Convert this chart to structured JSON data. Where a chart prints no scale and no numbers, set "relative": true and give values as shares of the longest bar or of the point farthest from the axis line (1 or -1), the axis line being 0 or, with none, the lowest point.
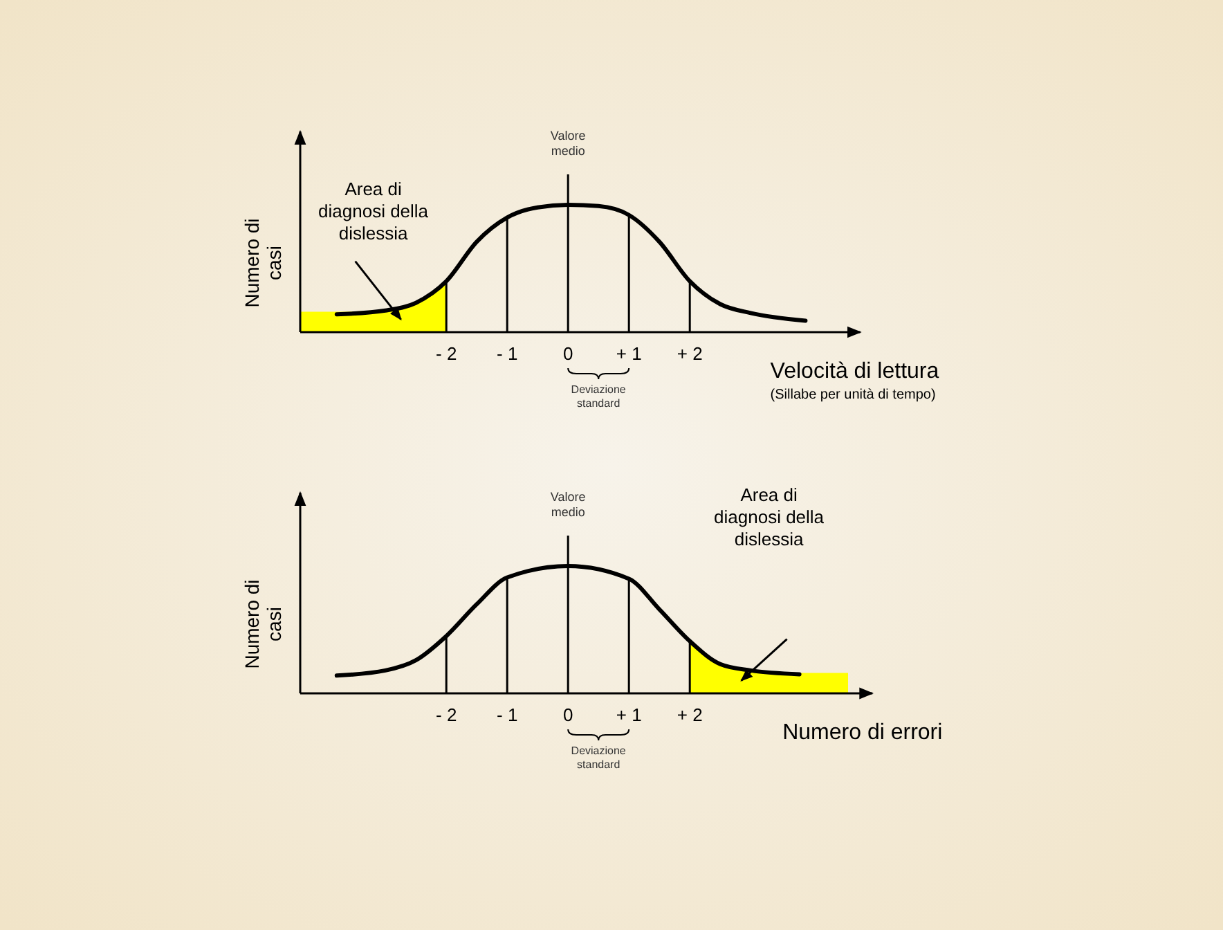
{
  "chart_data": [
    {
      "type": "line",
      "relative": true,
      "xlabel": "Velocità di lettura",
      "ylabel": "Numero di casi",
      "xlim": [
        -4.4,
        4.8
      ],
      "xticks": [
        {
          "value": -2,
          "label": "- 2"
        },
        {
          "value": -1,
          "label": "- 1"
        },
        0,
        {
          "value": 1,
          "label": "+ 1"
        },
        {
          "value": 2,
          "label": "+ 2"
        }
      ],
      "series": [
        {
          "type": "area",
          "color": "#ffff00",
          "x": [
            -4.4,
            -3.8,
            -3,
            -2.5,
            -2
          ],
          "values": [
            0.16,
            0.16,
            0.18,
            0.23,
            0.4
          ]
        },
        {
          "type": "line",
          "color": "#000000",
          "x": [
            -3.8,
            -3,
            -2.5,
            -2,
            -1.5,
            -1,
            -0.5,
            0,
            0.5,
            1,
            1.5,
            2,
            2.5,
            3,
            3.9
          ],
          "values": [
            0.14,
            0.17,
            0.23,
            0.4,
            0.71,
            0.9,
            0.98,
            1,
            0.99,
            0.92,
            0.71,
            0.4,
            0.22,
            0.15,
            0.09
          ]
        }
      ],
      "ref_lines": [
        {
          "axis": "x",
          "value": -2,
          "label": null,
          "color": "#000000"
        },
        {
          "axis": "x",
          "value": -1,
          "label": null,
          "color": "#000000"
        },
        {
          "axis": "x",
          "value": 0,
          "label": "Valore medio",
          "color": "#000000"
        },
        {
          "axis": "x",
          "value": 1,
          "label": null,
          "color": "#000000"
        },
        {
          "axis": "x",
          "value": 2,
          "label": null,
          "color": "#000000"
        }
      ],
      "annotations": [
        "(Sillabe per unità di tempo)",
        "Area di diagnosi della dislessia",
        "Deviazione standard"
      ]
    },
    {
      "type": "line",
      "relative": true,
      "xlabel": "Numero di errori",
      "ylabel": "Numero di casi",
      "xlim": [
        -4.4,
        5
      ],
      "xticks": [
        {
          "value": -2,
          "label": "- 2"
        },
        {
          "value": -1,
          "label": "- 1"
        },
        0,
        {
          "value": 1,
          "label": "+ 1"
        },
        {
          "value": 2,
          "label": "+ 2"
        }
      ],
      "series": [
        {
          "type": "area",
          "color": "#ffff00",
          "x": [
            2,
            2.5,
            3,
            3.8,
            4.6
          ],
          "values": [
            0.41,
            0.23,
            0.18,
            0.16,
            0.16
          ]
        },
        {
          "type": "line",
          "color": "#000000",
          "x": [
            -3.8,
            -3,
            -2.5,
            -2,
            -1.5,
            -1,
            0,
            1,
            1.5,
            2,
            2.5,
            3,
            3.8
          ],
          "values": [
            0.14,
            0.18,
            0.26,
            0.45,
            0.7,
            0.91,
            1,
            0.9,
            0.66,
            0.41,
            0.23,
            0.18,
            0.15
          ]
        }
      ],
      "ref_lines": [
        {
          "axis": "x",
          "value": -2,
          "label": null,
          "color": "#000000"
        },
        {
          "axis": "x",
          "value": -1,
          "label": null,
          "color": "#000000"
        },
        {
          "axis": "x",
          "value": 0,
          "label": "Valore medio",
          "color": "#000000"
        },
        {
          "axis": "x",
          "value": 1,
          "label": null,
          "color": "#000000"
        },
        {
          "axis": "x",
          "value": 2,
          "label": null,
          "color": "#000000"
        }
      ],
      "annotations": [
        "Area di diagnosi della dislessia",
        "Deviazione standard"
      ]
    }
  ]
}
